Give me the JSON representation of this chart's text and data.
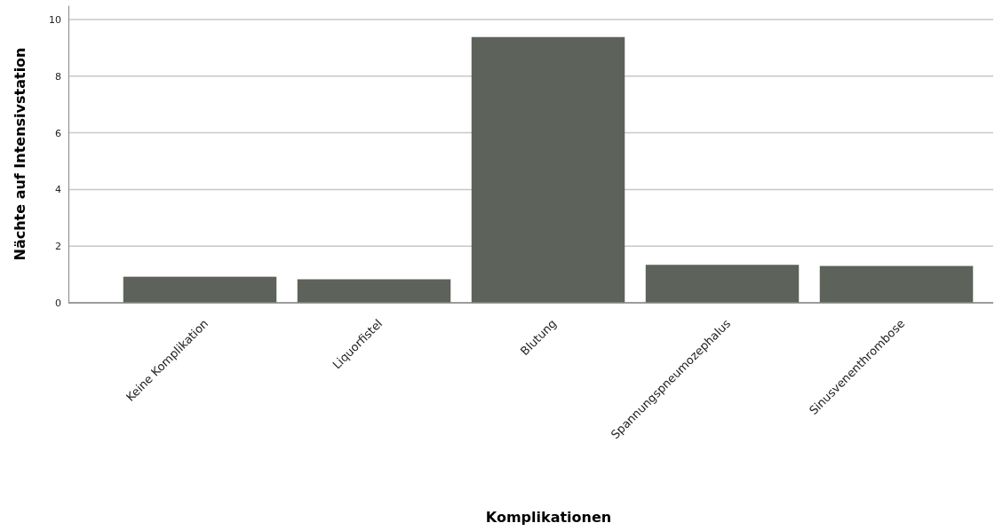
{
  "chart_data": {
    "type": "bar",
    "xlabel": "Komplikationen",
    "ylabel": "Nächte auf Intensivstation",
    "categories": [
      "Keine Komplikation",
      "Liquorfistel",
      "Blutung",
      "Spannungspneumozephalus",
      "Sinusvenenthrombose"
    ],
    "values": [
      0.92,
      0.83,
      9.38,
      1.34,
      1.3
    ],
    "color": "#5d625a",
    "ylim": [
      0,
      10.5
    ],
    "yticks": [
      0,
      2,
      4,
      6,
      8,
      10
    ],
    "grid": "y"
  }
}
